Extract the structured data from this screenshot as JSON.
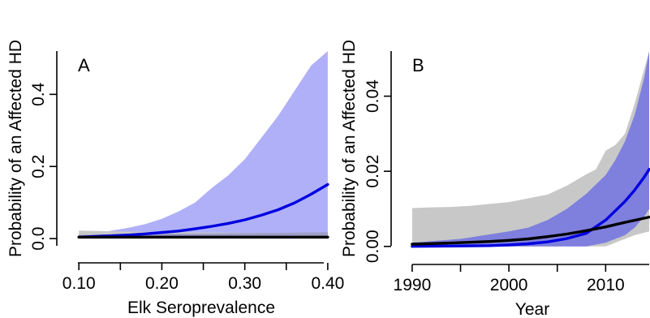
{
  "chart_data": [
    {
      "type": "line",
      "panel_label": "A",
      "xlabel": "Elk Seroprevalence",
      "ylabel": "Probability of an Affected HD",
      "xlim": [
        0.09,
        0.405
      ],
      "ylim": [
        -0.02,
        0.52
      ],
      "xticks": [
        0.1,
        0.15,
        0.2,
        0.25,
        0.3,
        0.35,
        0.4
      ],
      "xtick_labels": [
        "0.10",
        "",
        "0.20",
        "",
        "0.30",
        "",
        "0.40"
      ],
      "yticks": [
        0.0,
        0.2,
        0.4
      ],
      "ytick_labels": [
        "0.0",
        "0.2",
        "0.4"
      ],
      "grid": false,
      "series": [
        {
          "kind": "band",
          "color": "#b0b0f8",
          "x": [
            0.1,
            0.12,
            0.14,
            0.16,
            0.18,
            0.2,
            0.22,
            0.24,
            0.26,
            0.28,
            0.3,
            0.32,
            0.34,
            0.36,
            0.38,
            0.4
          ],
          "lower": [
            0.0,
            0.0,
            0.0,
            0.0,
            0.0,
            0.0,
            0.0,
            0.0,
            0.0,
            0.0,
            0.0,
            0.0,
            0.0,
            0.0,
            0.0,
            0.0
          ],
          "upper": [
            0.012,
            0.016,
            0.022,
            0.03,
            0.04,
            0.055,
            0.075,
            0.1,
            0.14,
            0.175,
            0.22,
            0.28,
            0.34,
            0.41,
            0.48,
            0.52
          ]
        },
        {
          "kind": "band",
          "color": "#c8c8c8",
          "x": [
            0.1,
            0.15,
            0.2,
            0.25,
            0.3,
            0.35,
            0.4
          ],
          "lower": [
            0.0,
            0.0,
            0.0,
            0.0,
            0.0,
            0.0,
            0.0
          ],
          "upper": [
            0.022,
            0.02,
            0.018,
            0.017,
            0.016,
            0.016,
            0.018
          ]
        },
        {
          "kind": "band",
          "color": "#9e9ec8",
          "x": [
            0.1,
            0.15,
            0.2,
            0.25,
            0.3,
            0.35,
            0.4
          ],
          "lower": [
            0.0,
            0.0,
            0.0,
            0.0,
            0.0,
            0.0,
            0.0
          ],
          "upper": [
            0.01,
            0.012,
            0.013,
            0.014,
            0.015,
            0.016,
            0.018
          ]
        },
        {
          "kind": "line",
          "color": "#0000e0",
          "x": [
            0.1,
            0.12,
            0.14,
            0.16,
            0.18,
            0.2,
            0.22,
            0.24,
            0.26,
            0.28,
            0.3,
            0.32,
            0.34,
            0.36,
            0.38,
            0.4
          ],
          "y": [
            0.004,
            0.006,
            0.008,
            0.01,
            0.013,
            0.017,
            0.021,
            0.027,
            0.034,
            0.042,
            0.052,
            0.065,
            0.08,
            0.099,
            0.123,
            0.15
          ]
        },
        {
          "kind": "line",
          "color": "#000000",
          "x": [
            0.1,
            0.4
          ],
          "y": [
            0.004,
            0.004
          ]
        }
      ]
    },
    {
      "type": "line",
      "panel_label": "B",
      "xlabel": "Year",
      "ylabel": "Probability of an Affected HD",
      "xlim": [
        1989,
        2014.5
      ],
      "ylim": [
        -0.002,
        0.052
      ],
      "xticks": [
        1990,
        1995,
        2000,
        2005,
        2010
      ],
      "xtick_labels": [
        "1990",
        "",
        "2000",
        "",
        "2010"
      ],
      "yticks": [
        0.0,
        0.02,
        0.04
      ],
      "ytick_labels": [
        "0.00",
        "0.02",
        "0.04"
      ],
      "grid": false,
      "series": [
        {
          "kind": "band",
          "color": "#c8c8c8",
          "x": [
            1990,
            1992,
            1994,
            1996,
            1998,
            2000,
            2002,
            2004,
            2006,
            2008,
            2009,
            2010,
            2011,
            2012,
            2013,
            2014.5
          ],
          "lower": [
            0.0,
            0.0,
            0.0,
            0.0,
            0.0,
            0.0,
            0.0,
            0.0,
            0.0,
            0.0,
            0.0,
            0.0,
            0.001,
            0.002,
            0.003,
            0.004
          ],
          "upper": [
            0.0102,
            0.0104,
            0.0105,
            0.0108,
            0.0113,
            0.0118,
            0.0128,
            0.0138,
            0.0162,
            0.0192,
            0.0205,
            0.0255,
            0.027,
            0.03,
            0.038,
            0.052
          ]
        },
        {
          "kind": "band",
          "color": "#7f7fde",
          "x": [
            1990,
            1995,
            2000,
            2002,
            2004,
            2006,
            2008,
            2010,
            2011,
            2012,
            2013,
            2014,
            2014.5
          ],
          "lower": [
            0.0,
            0.0,
            0.0,
            0.0,
            0.0,
            0.0,
            0.0,
            0.001,
            0.002,
            0.003,
            0.005,
            0.008,
            0.01
          ],
          "upper": [
            0.001,
            0.002,
            0.004,
            0.005,
            0.007,
            0.01,
            0.014,
            0.019,
            0.023,
            0.028,
            0.035,
            0.045,
            0.052
          ]
        },
        {
          "kind": "line",
          "color": "#0000e0",
          "x": [
            1990,
            1994,
            1998,
            2000,
            2002,
            2004,
            2006,
            2008,
            2010,
            2011,
            2012,
            2013,
            2014,
            2014.5
          ],
          "y": [
            0.0,
            0.0001,
            0.0002,
            0.0004,
            0.0007,
            0.0012,
            0.0021,
            0.0035,
            0.007,
            0.0095,
            0.012,
            0.015,
            0.0185,
            0.0205
          ]
        },
        {
          "kind": "line",
          "color": "#000000",
          "x": [
            1990,
            1994,
            1998,
            2000,
            2002,
            2004,
            2006,
            2008,
            2010,
            2012,
            2014.5
          ],
          "y": [
            0.0006,
            0.0009,
            0.0013,
            0.0016,
            0.002,
            0.0026,
            0.0033,
            0.0042,
            0.0052,
            0.0064,
            0.0078
          ]
        }
      ]
    }
  ]
}
